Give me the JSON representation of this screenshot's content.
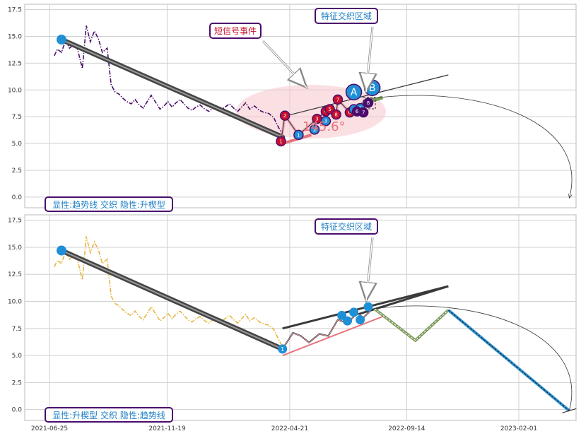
{
  "colors": {
    "grid": "#cfcfcf",
    "panel_bg": "#ffffff",
    "top_price": "#4b0d6b",
    "bottom_price": "#e6b640",
    "trend_dark": "#333333",
    "marker_red": "#c8102e",
    "marker_blue": "#1f8fd6",
    "marker_purple": "#4b0d6b",
    "pink_line": "#e8747c",
    "ellipse_fill": "#f6c6cc",
    "box_border": "#4b0d6b",
    "box_text_blue": "#1f7fc4",
    "box_text_red": "#c8102e",
    "zigzag_green": "#7a9a5a",
    "zigzag_blue": "#2a8fd0"
  },
  "chart_data": [
    {
      "type": "line",
      "panel": "top",
      "ylim": [
        -1.0,
        18.0
      ],
      "y_ticks": [
        "0.0",
        "2.5",
        "5.0",
        "7.5",
        "10.0",
        "12.5",
        "15.0",
        "17.5"
      ],
      "y_tick_values": [
        0,
        2.5,
        5,
        7.5,
        10,
        12.5,
        15,
        17.5
      ],
      "price_series": {
        "x": [
          "2021-07-01",
          "2021-07-05",
          "2021-07-10",
          "2021-07-15",
          "2021-07-20",
          "2021-07-25",
          "2021-07-30",
          "2021-08-05",
          "2021-08-10",
          "2021-08-15",
          "2021-08-20",
          "2021-08-25",
          "2021-08-30",
          "2021-09-05",
          "2021-09-10",
          "2021-09-15",
          "2021-09-20",
          "2021-09-25",
          "2021-09-30",
          "2021-10-05",
          "2021-10-10",
          "2021-10-15",
          "2021-10-20",
          "2021-10-25",
          "2021-10-30",
          "2021-11-05",
          "2021-11-10",
          "2021-11-15",
          "2021-11-20",
          "2021-11-25",
          "2021-11-30",
          "2021-12-05",
          "2021-12-10",
          "2021-12-15",
          "2021-12-20",
          "2021-12-25",
          "2021-12-30",
          "2022-01-05",
          "2022-01-10",
          "2022-01-15",
          "2022-01-20",
          "2022-01-25",
          "2022-01-30",
          "2022-02-05",
          "2022-02-10",
          "2022-02-15",
          "2022-02-20",
          "2022-02-25",
          "2022-03-02",
          "2022-03-08",
          "2022-03-14",
          "2022-03-20",
          "2022-03-26",
          "2022-04-01",
          "2022-04-07",
          "2022-04-12"
        ],
        "y": [
          13.2,
          13.8,
          13.5,
          14.6,
          13.9,
          14.2,
          13.8,
          12.0,
          16.0,
          14.5,
          15.5,
          14.8,
          13.5,
          13.9,
          10.5,
          9.8,
          9.6,
          9.2,
          8.9,
          8.7,
          9.1,
          8.6,
          8.3,
          8.9,
          9.5,
          8.8,
          8.2,
          8.5,
          8.9,
          8.4,
          8.8,
          9.1,
          8.7,
          8.3,
          8.1,
          8.4,
          8.6,
          8.2,
          8.0,
          8.3,
          8.5,
          8.1,
          8.4,
          8.7,
          8.3,
          8.0,
          8.4,
          8.8,
          8.2,
          8.5,
          8.1,
          7.9,
          7.8,
          7.4,
          6.5,
          5.8
        ]
      },
      "trend_main": {
        "x": [
          "2021-07-10",
          "2022-04-12"
        ],
        "y": [
          14.7,
          5.6
        ]
      },
      "upper_line": {
        "x": [
          "2022-04-12",
          "2022-11-05"
        ],
        "y": [
          7.5,
          11.4
        ]
      },
      "pink_line": {
        "x": [
          "2022-04-12",
          "2022-05-18"
        ],
        "y": [
          5.0,
          5.8
        ]
      },
      "green_segment": {
        "x": [
          "2022-07-20",
          "2022-08-15"
        ],
        "y": [
          8.7,
          9.3
        ]
      },
      "angle_label": "145.6°",
      "markers_red": [
        {
          "x": "2022-04-10",
          "y": 5.2,
          "label": "1"
        },
        {
          "x": "2022-04-15",
          "y": 7.6,
          "label": "2"
        },
        {
          "x": "2022-05-25",
          "y": 7.3,
          "label": "3"
        },
        {
          "x": "2022-06-05",
          "y": 8.0,
          "label": "4"
        },
        {
          "x": "2022-06-10",
          "y": 8.2,
          "label": "5"
        },
        {
          "x": "2022-06-20",
          "y": 9.1,
          "label": "7"
        },
        {
          "x": "2022-07-05",
          "y": 7.9,
          "label": "6"
        },
        {
          "x": "2022-06-18",
          "y": 7.7,
          "label": "8"
        }
      ],
      "markers_blue": [
        {
          "x": "2022-05-02",
          "y": 5.8,
          "label": "1"
        },
        {
          "x": "2022-05-22",
          "y": 6.3,
          "label": "2"
        },
        {
          "x": "2022-06-05",
          "y": 7.1,
          "label": "3"
        },
        {
          "x": "2022-07-10",
          "y": 8.2,
          "label": "4"
        },
        {
          "x": "2022-07-18",
          "y": 8.3,
          "label": "5"
        }
      ],
      "markers_purple": [
        {
          "x": "2022-07-14",
          "y": 8.0,
          "label": "6"
        },
        {
          "x": "2022-07-22",
          "y": 7.9,
          "label": "7"
        },
        {
          "x": "2022-07-28",
          "y": 8.8,
          "label": "8"
        }
      ],
      "big_markers": [
        {
          "x": "2022-07-10",
          "y": 9.8,
          "label": "A"
        },
        {
          "x": "2022-08-02",
          "y": 10.2,
          "label": "B"
        }
      ],
      "arc_end": {
        "x": "2023-04-05",
        "y": -0.1
      },
      "annotations": {
        "short_signal": "短信号事件",
        "feature_zone": "特征交织区域",
        "legend_box": "显性:趋势线 交织 隐性:升楔型"
      },
      "grid": true
    },
    {
      "type": "line",
      "panel": "bottom",
      "ylim": [
        -1.0,
        18.0
      ],
      "y_ticks": [
        "0.0",
        "2.5",
        "5.0",
        "7.5",
        "10.0",
        "12.5",
        "15.0",
        "17.5"
      ],
      "y_tick_values": [
        0,
        2.5,
        5,
        7.5,
        10,
        12.5,
        15,
        17.5
      ],
      "x_ticks": [
        "2021-06-25",
        "2021-11-19",
        "2022-04-21",
        "2022-09-14",
        "2023-02-01"
      ],
      "trend_main": {
        "x": [
          "2021-07-10",
          "2022-04-12"
        ],
        "y": [
          14.7,
          5.6
        ]
      },
      "upper_line_1": {
        "x": [
          "2022-04-12",
          "2022-11-05"
        ],
        "y": [
          7.5,
          11.4
        ]
      },
      "upper_line_2": {
        "x": [
          "2022-07-15",
          "2022-11-05"
        ],
        "y": [
          8.8,
          11.4
        ]
      },
      "pink_line": {
        "x": [
          "2022-04-12",
          "2022-08-15"
        ],
        "y": [
          5.0,
          8.6
        ]
      },
      "inner_zigzag": {
        "x": [
          "2022-04-12",
          "2022-04-25",
          "2022-05-05",
          "2022-05-15",
          "2022-05-28",
          "2022-06-08",
          "2022-06-20",
          "2022-07-02",
          "2022-07-14",
          "2022-07-22",
          "2022-08-02"
        ],
        "y": [
          5.6,
          7.1,
          6.8,
          6.2,
          7.0,
          6.8,
          8.3,
          8.0,
          8.9,
          8.5,
          9.3
        ]
      },
      "green_zigzag": {
        "x": [
          "2022-08-05",
          "2022-09-25",
          "2022-11-05"
        ],
        "y": [
          9.3,
          6.4,
          9.2
        ]
      },
      "blue_zigzag": {
        "x": [
          "2022-11-05",
          "2023-04-05"
        ],
        "y": [
          9.2,
          -0.1
        ]
      },
      "blue_dots": [
        {
          "x": "2021-07-10",
          "y": 14.7
        },
        {
          "x": "2022-04-12",
          "y": 5.6,
          "label": "1"
        },
        {
          "x": "2022-06-25",
          "y": 8.7
        },
        {
          "x": "2022-07-02",
          "y": 8.2
        },
        {
          "x": "2022-07-10",
          "y": 9.0
        },
        {
          "x": "2022-07-18",
          "y": 8.3
        },
        {
          "x": "2022-07-28",
          "y": 9.5
        }
      ],
      "annotations": {
        "feature_zone": "特征交织区域",
        "legend_box": "显性:升楔型 交织 隐性:趋势线"
      },
      "grid": true
    }
  ]
}
